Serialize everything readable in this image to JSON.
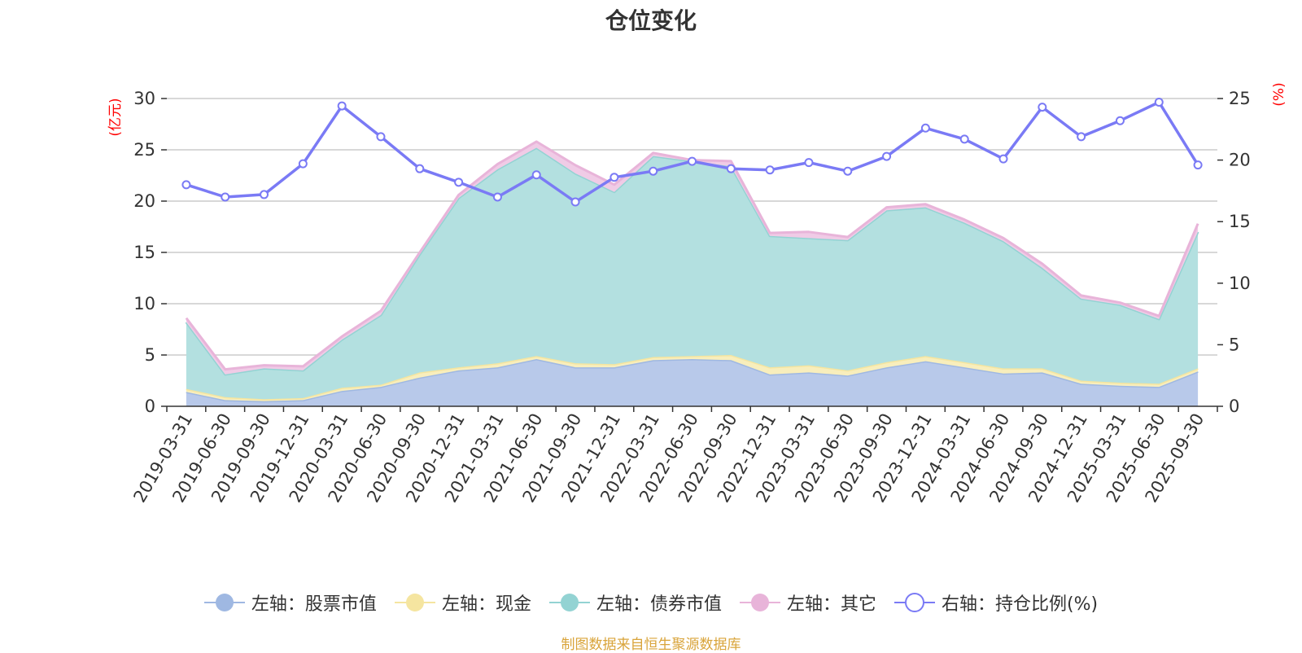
{
  "title": "仓位变化",
  "source_note": "制图数据来自恒生聚源数据库",
  "chart_data": {
    "type": "area",
    "title": "仓位变化",
    "y_left_label": "(亿元)",
    "y_right_label": "(%)",
    "y_left_lim": [
      0,
      30
    ],
    "y_left_ticks": [
      "0",
      "5",
      "10",
      "15",
      "20",
      "25",
      "30"
    ],
    "y_right_lim": [
      0,
      25
    ],
    "y_right_ticks": [
      "0",
      "5",
      "10",
      "15",
      "20",
      "25"
    ],
    "categories": [
      "2019-03-31",
      "2019-06-30",
      "2019-09-30",
      "2019-12-31",
      "2020-03-31",
      "2020-06-30",
      "2020-09-30",
      "2020-12-31",
      "2021-03-31",
      "2021-06-30",
      "2021-09-30",
      "2021-12-31",
      "2022-03-31",
      "2022-06-30",
      "2022-09-30",
      "2022-12-31",
      "2023-03-31",
      "2023-06-30",
      "2023-09-30",
      "2023-12-31",
      "2024-03-31",
      "2024-06-30",
      "2024-09-30",
      "2024-12-31",
      "2025-03-31",
      "2025-06-30",
      "2025-09-30"
    ],
    "stacked_series": [
      {
        "name": "左轴：股票市值",
        "color": "#9fb8e2",
        "fill": "#b8c9ea",
        "values": [
          1.4,
          0.6,
          0.5,
          0.6,
          1.5,
          1.9,
          2.8,
          3.5,
          3.8,
          4.6,
          3.8,
          3.8,
          4.5,
          4.6,
          4.5,
          3.1,
          3.3,
          3.0,
          3.8,
          4.4,
          3.8,
          3.2,
          3.3,
          2.2,
          2.0,
          1.9,
          3.4
        ]
      },
      {
        "name": "左轴：现金",
        "color": "#f5e5a0",
        "fill": "#f8eebc",
        "values": [
          0.3,
          0.3,
          0.2,
          0.2,
          0.3,
          0.2,
          0.5,
          0.3,
          0.4,
          0.3,
          0.4,
          0.3,
          0.3,
          0.3,
          0.5,
          0.7,
          0.7,
          0.5,
          0.5,
          0.5,
          0.5,
          0.5,
          0.4,
          0.3,
          0.3,
          0.3,
          0.3
        ]
      },
      {
        "name": "左轴：债券市值",
        "color": "#93d3d3",
        "fill": "#b3e0e0",
        "values": [
          6.5,
          2.2,
          3.0,
          2.7,
          4.7,
          6.8,
          11.5,
          16.5,
          18.9,
          20.3,
          18.5,
          16.8,
          19.6,
          19.0,
          18.4,
          12.8,
          12.4,
          12.7,
          14.8,
          14.5,
          13.6,
          12.4,
          9.8,
          8.0,
          7.6,
          6.3,
          13.3
        ]
      },
      {
        "name": "左轴：其它",
        "color": "#e8b4d9",
        "fill": "#f0cbe6",
        "values": [
          0.4,
          0.5,
          0.3,
          0.4,
          0.3,
          0.4,
          0.2,
          0.3,
          0.5,
          0.6,
          0.8,
          0.7,
          0.3,
          0.1,
          0.5,
          0.3,
          0.6,
          0.3,
          0.3,
          0.3,
          0.3,
          0.3,
          0.4,
          0.3,
          0.2,
          0.3,
          0.8
        ]
      }
    ],
    "line_series": {
      "name": "右轴：持仓比例(%)",
      "color": "#7a7af5",
      "axis": "right",
      "values": [
        18.0,
        17.0,
        17.2,
        19.7,
        24.4,
        21.9,
        19.3,
        18.2,
        17.0,
        18.8,
        16.6,
        18.6,
        19.1,
        19.9,
        19.3,
        19.2,
        19.8,
        19.1,
        20.3,
        22.6,
        21.7,
        20.1,
        24.3,
        21.9,
        23.2,
        24.7,
        19.6
      ]
    }
  }
}
